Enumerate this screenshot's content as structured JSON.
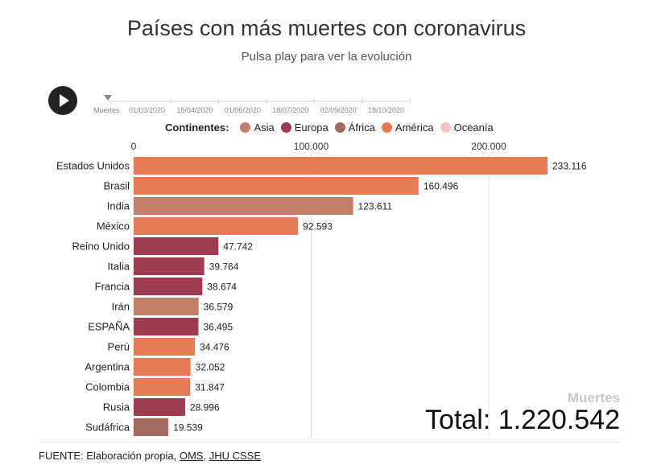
{
  "title": "Países con más muertes con coronavirus",
  "subtitle": "Pulsa play para ver la evolución",
  "timeline": {
    "label": "Muertes",
    "dates": [
      "01/03/2020",
      "16/04/2020",
      "01/06/2020",
      "18/07/2020",
      "02/09/2020",
      "18/10/2020"
    ]
  },
  "legend": {
    "title": "Continentes:",
    "items": [
      {
        "label": "Asia",
        "color": "#c17f6a"
      },
      {
        "label": "Europa",
        "color": "#9e3a52"
      },
      {
        "label": "África",
        "color": "#a26a5f"
      },
      {
        "label": "América",
        "color": "#e47b54"
      },
      {
        "label": "Oceanía",
        "color": "#f4c2c0"
      }
    ]
  },
  "chart_data": {
    "type": "bar",
    "orientation": "horizontal",
    "categories": [
      "Estados Unidos",
      "Brasil",
      "India",
      "México",
      "Reino Unido",
      "Italia",
      "Francia",
      "Irán",
      "ESPAÑA",
      "Perú",
      "Argentina",
      "Colombia",
      "Rusia",
      "Sudáfrica"
    ],
    "values": [
      233116,
      160496,
      123611,
      92593,
      47742,
      39764,
      38674,
      36579,
      36495,
      34476,
      32052,
      31847,
      28996,
      19539
    ],
    "value_labels": [
      "233.116",
      "160.496",
      "123.611",
      "92.593",
      "47.742",
      "39.764",
      "38.674",
      "36.579",
      "36.495",
      "34.476",
      "32.052",
      "31.847",
      "28.996",
      "19.539"
    ],
    "continents": [
      "América",
      "América",
      "Asia",
      "América",
      "Europa",
      "Europa",
      "Europa",
      "Asia",
      "Europa",
      "América",
      "America",
      "América",
      "Europa",
      "África"
    ],
    "xlim": [
      0,
      233116
    ],
    "ticks": [
      0,
      100000,
      200000
    ],
    "tick_labels": [
      "0",
      "100.000",
      "200.000"
    ],
    "grid": true
  },
  "watermark": {
    "metric": "Muertes",
    "total": "Total: 1.220.542"
  },
  "source": {
    "prefix": "FUENTE: Elaboración propia, ",
    "link1": "OMS",
    "separator": ", ",
    "link2": "JHU CSSE"
  }
}
